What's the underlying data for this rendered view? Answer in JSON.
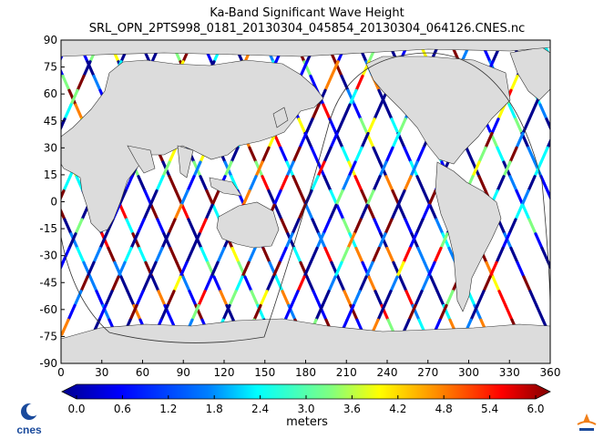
{
  "title": "Ka-Band Significant Wave Height",
  "subtitle": "SRL_OPN_2PTS998_0181_20130304_045854_20130304_064126.CNES.nc",
  "x_ticks": [
    "0",
    "30",
    "60",
    "90",
    "120",
    "150",
    "180",
    "210",
    "240",
    "270",
    "300",
    "330",
    "360"
  ],
  "y_ticks": [
    "90",
    "75",
    "60",
    "45",
    "30",
    "15",
    "0",
    "-15",
    "-30",
    "-45",
    "-60",
    "-75",
    "-90"
  ],
  "colorbar": {
    "label": "meters",
    "ticks": [
      "0.0",
      "0.6",
      "1.2",
      "1.8",
      "2.4",
      "3.0",
      "3.6",
      "4.2",
      "4.8",
      "5.4",
      "6.0"
    ],
    "range": [
      0,
      6.0
    ],
    "colormap": [
      "#00008f",
      "#0000ff",
      "#0080ff",
      "#00ffff",
      "#80ff80",
      "#ffff00",
      "#ff8000",
      "#ff0000",
      "#800000"
    ]
  },
  "map": {
    "extent_lon": [
      0,
      360
    ],
    "extent_lat": [
      -90,
      90
    ],
    "land_color": "#dcdcdc",
    "ocean_color": "#ffffff"
  },
  "logos": {
    "left": "cnes",
    "right": "isro"
  },
  "colors": {
    "track_high": "#ff0000",
    "track_low": "#0000ff"
  }
}
